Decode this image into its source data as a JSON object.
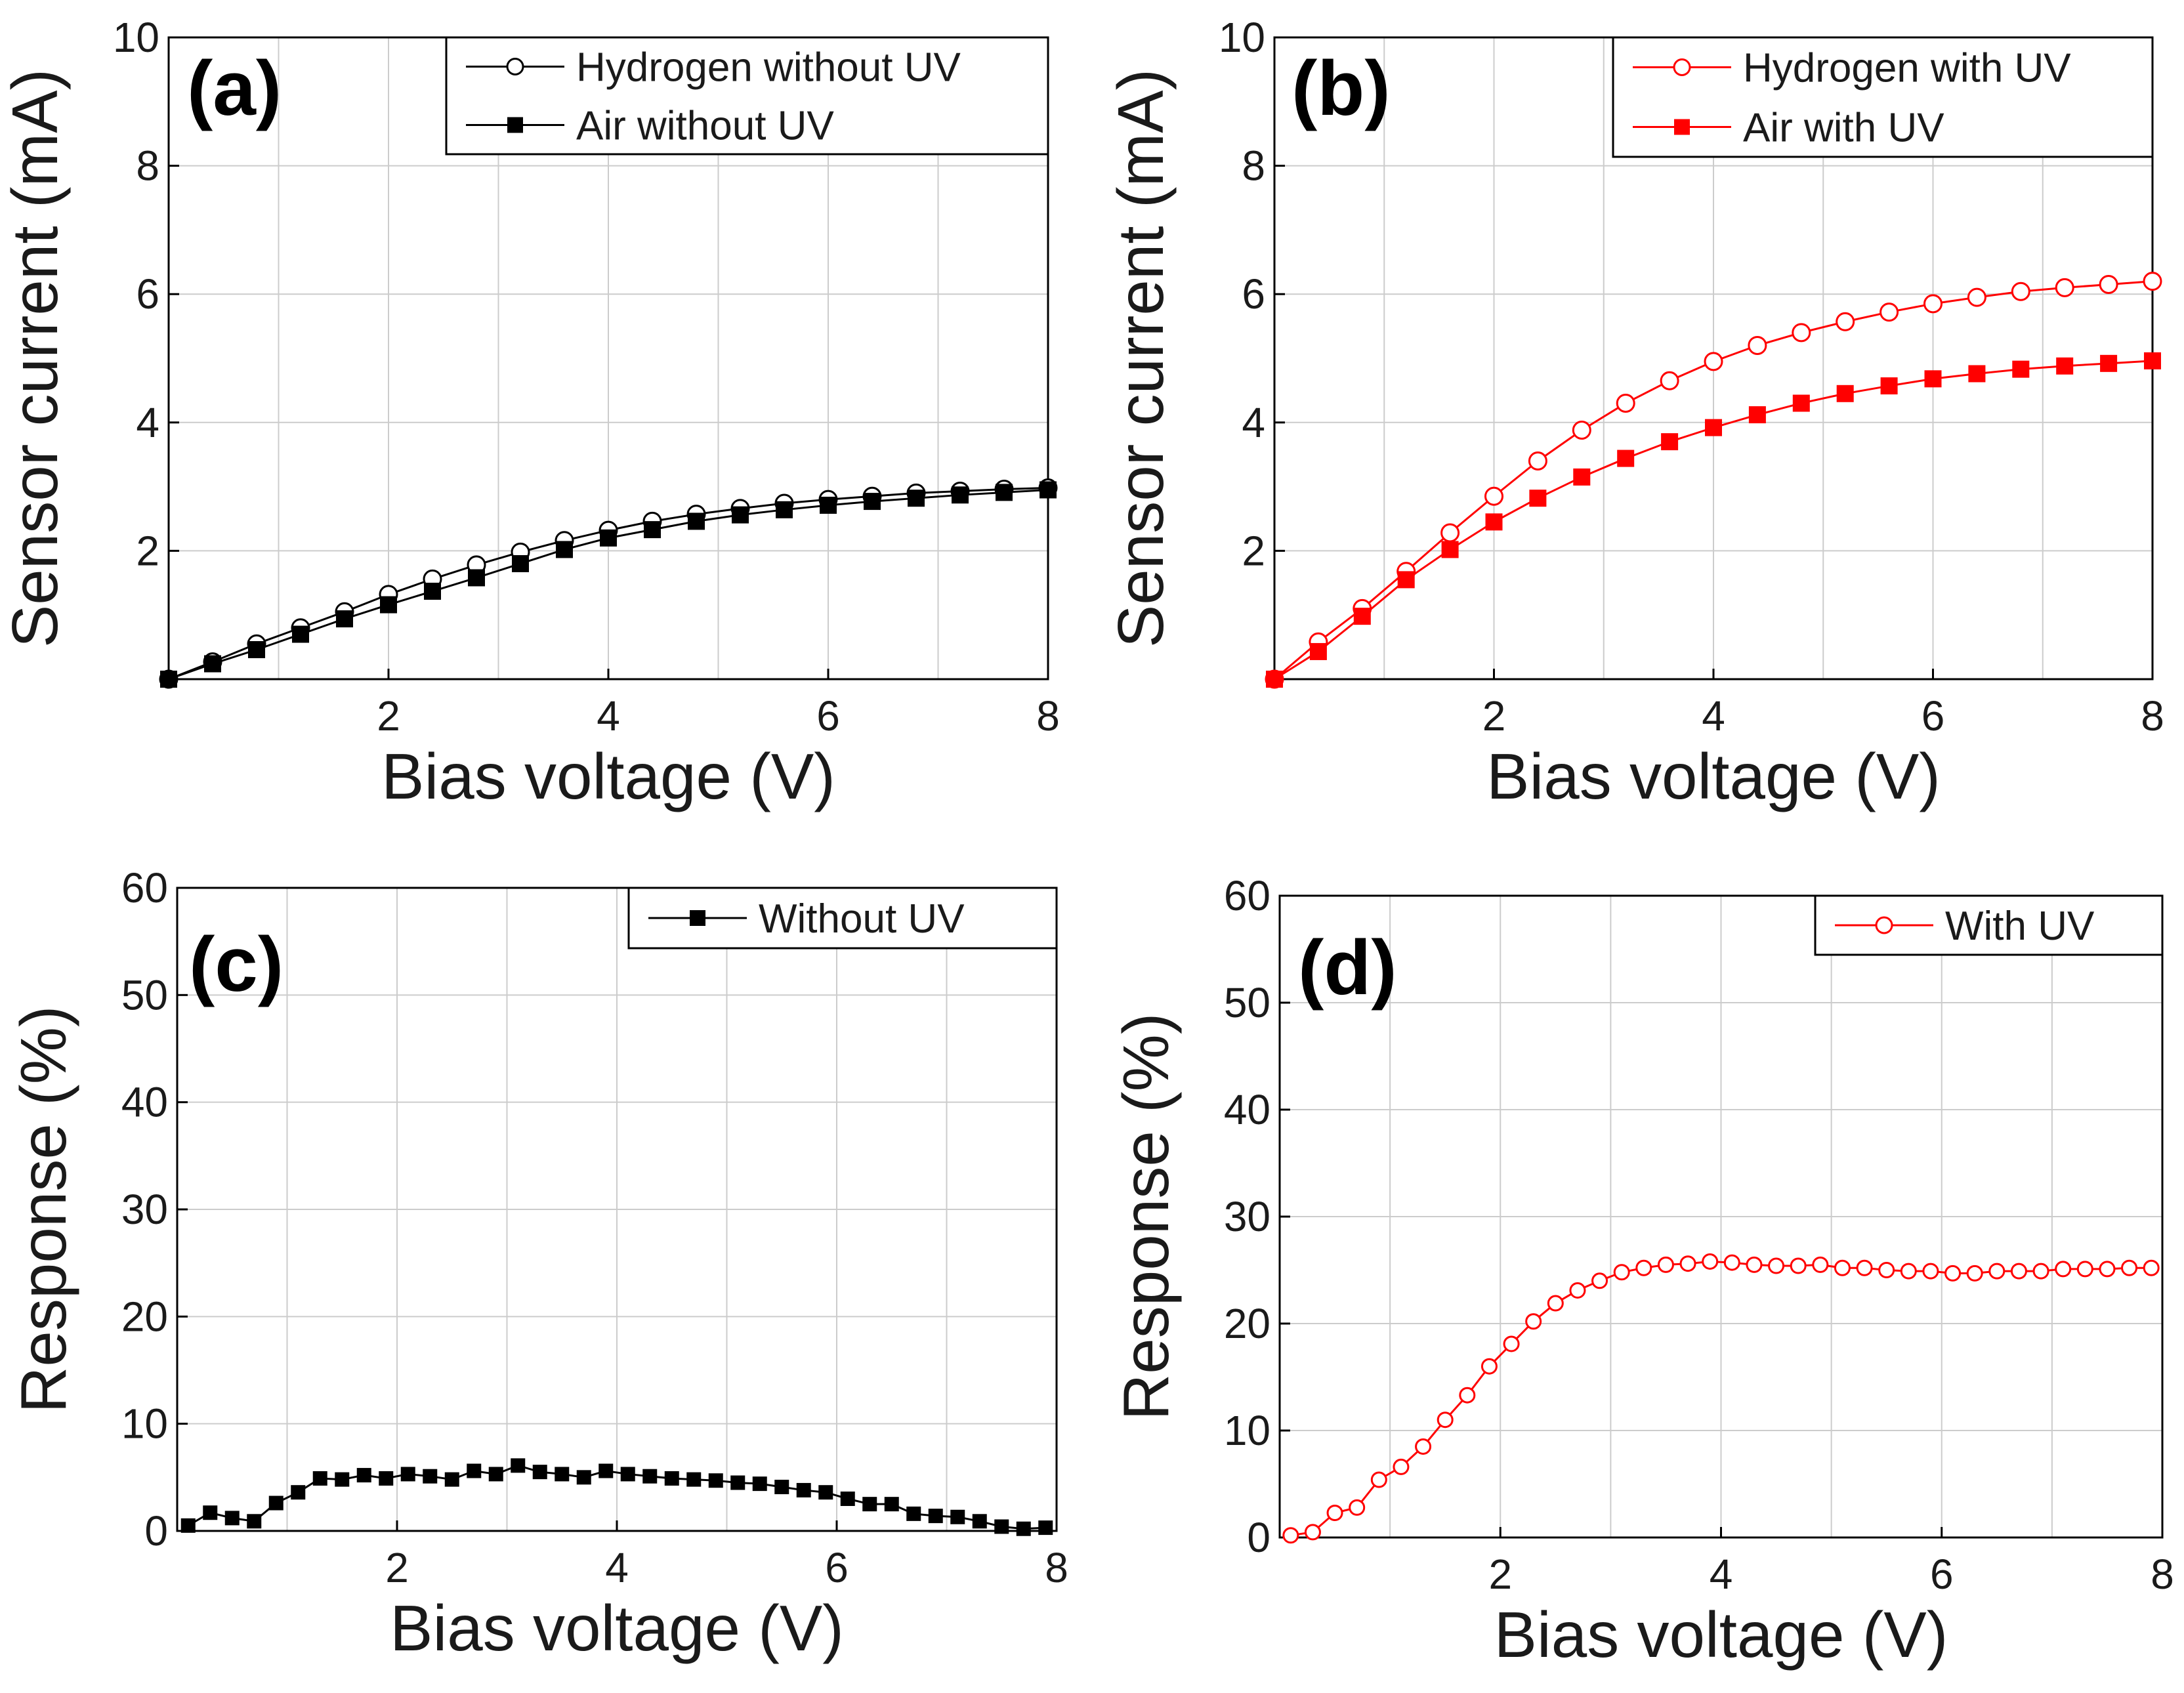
{
  "chart_data": [
    {
      "id": "a",
      "type": "line",
      "panel_label": "(a)",
      "xlabel": "Bias voltage (V)",
      "ylabel": "Sensor current (mA)",
      "xlim": [
        0,
        8
      ],
      "ylim": [
        0,
        10
      ],
      "xticks": [
        "2",
        "4",
        "6",
        "8"
      ],
      "yticks": [
        "2",
        "4",
        "6",
        "8",
        "10"
      ],
      "grid": true,
      "legend_position": "top-right",
      "series": [
        {
          "name": "Hydrogen without UV",
          "marker": "open-circle",
          "color": "#000000",
          "x": [
            0,
            0.4,
            0.8,
            1.2,
            1.6,
            2.0,
            2.4,
            2.8,
            3.2,
            3.6,
            4.0,
            4.4,
            4.8,
            5.2,
            5.6,
            6.0,
            6.4,
            6.8,
            7.2,
            7.6,
            8.0
          ],
          "y": [
            0,
            0.27,
            0.55,
            0.8,
            1.05,
            1.32,
            1.56,
            1.78,
            1.98,
            2.16,
            2.32,
            2.46,
            2.57,
            2.66,
            2.74,
            2.8,
            2.85,
            2.9,
            2.93,
            2.96,
            2.98
          ]
        },
        {
          "name": "Air without UV",
          "marker": "filled-square",
          "color": "#000000",
          "x": [
            0,
            0.4,
            0.8,
            1.2,
            1.6,
            2.0,
            2.4,
            2.8,
            3.2,
            3.6,
            4.0,
            4.4,
            4.8,
            5.2,
            5.6,
            6.0,
            6.4,
            6.8,
            7.2,
            7.6,
            8.0
          ],
          "y": [
            0,
            0.24,
            0.46,
            0.7,
            0.94,
            1.16,
            1.37,
            1.58,
            1.8,
            2.02,
            2.2,
            2.33,
            2.46,
            2.56,
            2.64,
            2.71,
            2.77,
            2.82,
            2.87,
            2.91,
            2.95
          ]
        }
      ]
    },
    {
      "id": "b",
      "type": "line",
      "panel_label": "(b)",
      "xlabel": "Bias voltage (V)",
      "ylabel": "Sensor current (mA)",
      "xlim": [
        0,
        8
      ],
      "ylim": [
        0,
        10
      ],
      "xticks": [
        "2",
        "4",
        "6",
        "8"
      ],
      "yticks": [
        "2",
        "4",
        "6",
        "8",
        "10"
      ],
      "grid": true,
      "legend_position": "top-right",
      "series": [
        {
          "name": "Hydrogen with UV",
          "marker": "open-circle",
          "color": "#ff0000",
          "x": [
            0,
            0.4,
            0.8,
            1.2,
            1.6,
            2.0,
            2.4,
            2.8,
            3.2,
            3.6,
            4.0,
            4.4,
            4.8,
            5.2,
            5.6,
            6.0,
            6.4,
            6.8,
            7.2,
            7.6,
            8.0
          ],
          "y": [
            0,
            0.58,
            1.1,
            1.68,
            2.28,
            2.85,
            3.4,
            3.88,
            4.3,
            4.65,
            4.95,
            5.2,
            5.4,
            5.57,
            5.72,
            5.85,
            5.95,
            6.04,
            6.1,
            6.15,
            6.2
          ]
        },
        {
          "name": "Air with UV",
          "marker": "filled-square",
          "color": "#ff0000",
          "x": [
            0,
            0.4,
            0.8,
            1.2,
            1.6,
            2.0,
            2.4,
            2.8,
            3.2,
            3.6,
            4.0,
            4.4,
            4.8,
            5.2,
            5.6,
            6.0,
            6.4,
            6.8,
            7.2,
            7.6,
            8.0
          ],
          "y": [
            0,
            0.43,
            0.98,
            1.55,
            2.02,
            2.45,
            2.82,
            3.15,
            3.44,
            3.7,
            3.92,
            4.12,
            4.3,
            4.45,
            4.57,
            4.68,
            4.76,
            4.83,
            4.88,
            4.92,
            4.96
          ]
        }
      ]
    },
    {
      "id": "c",
      "type": "line",
      "panel_label": "(c)",
      "xlabel": "Bias voltage (V)",
      "ylabel": "Response (%)",
      "xlim": [
        0,
        8
      ],
      "ylim": [
        0,
        60
      ],
      "xticks": [
        "2",
        "4",
        "6",
        "8"
      ],
      "yticks": [
        "0",
        "10",
        "20",
        "30",
        "40",
        "50",
        "60"
      ],
      "grid": true,
      "legend_position": "top-right",
      "series": [
        {
          "name": "Without UV",
          "marker": "filled-square",
          "color": "#000000",
          "x": [
            0.1,
            0.3,
            0.5,
            0.7,
            0.9,
            1.1,
            1.3,
            1.5,
            1.7,
            1.9,
            2.1,
            2.3,
            2.5,
            2.7,
            2.9,
            3.1,
            3.3,
            3.5,
            3.7,
            3.9,
            4.1,
            4.3,
            4.5,
            4.7,
            4.9,
            5.1,
            5.3,
            5.5,
            5.7,
            5.9,
            6.1,
            6.3,
            6.5,
            6.7,
            6.9,
            7.1,
            7.3,
            7.5,
            7.7,
            7.9
          ],
          "y": [
            0.5,
            1.7,
            1.2,
            0.9,
            2.6,
            3.6,
            4.9,
            4.8,
            5.2,
            4.9,
            5.3,
            5.1,
            4.8,
            5.6,
            5.3,
            6.1,
            5.5,
            5.3,
            5.0,
            5.6,
            5.3,
            5.1,
            4.9,
            4.8,
            4.7,
            4.5,
            4.4,
            4.1,
            3.8,
            3.6,
            3.0,
            2.5,
            2.5,
            1.6,
            1.4,
            1.3,
            0.9,
            0.4,
            0.2,
            0.3
          ]
        }
      ]
    },
    {
      "id": "d",
      "type": "line",
      "panel_label": "(d)",
      "xlabel": "Bias voltage (V)",
      "ylabel": "Response (%)",
      "xlim": [
        0,
        8
      ],
      "ylim": [
        0,
        60
      ],
      "xticks": [
        "2",
        "4",
        "6",
        "8"
      ],
      "yticks": [
        "0",
        "10",
        "20",
        "30",
        "40",
        "50",
        "60"
      ],
      "grid": true,
      "legend_position": "top-right",
      "series": [
        {
          "name": "With UV",
          "marker": "open-circle",
          "color": "#ff0000",
          "x": [
            0.1,
            0.3,
            0.5,
            0.7,
            0.9,
            1.1,
            1.3,
            1.5,
            1.7,
            1.9,
            2.1,
            2.3,
            2.5,
            2.7,
            2.9,
            3.1,
            3.3,
            3.5,
            3.7,
            3.9,
            4.1,
            4.3,
            4.5,
            4.7,
            4.9,
            5.1,
            5.3,
            5.5,
            5.7,
            5.9,
            6.1,
            6.3,
            6.5,
            6.7,
            6.9,
            7.1,
            7.3,
            7.5,
            7.7,
            7.9
          ],
          "y": [
            0.2,
            0.5,
            2.3,
            2.8,
            5.4,
            6.6,
            8.5,
            11.0,
            13.3,
            16.0,
            18.1,
            20.2,
            21.9,
            23.1,
            24.0,
            24.8,
            25.2,
            25.5,
            25.6,
            25.8,
            25.7,
            25.5,
            25.4,
            25.4,
            25.5,
            25.2,
            25.2,
            25.0,
            24.9,
            24.9,
            24.7,
            24.7,
            24.9,
            24.9,
            24.9,
            25.1,
            25.1,
            25.1,
            25.2,
            25.2
          ]
        }
      ]
    }
  ]
}
